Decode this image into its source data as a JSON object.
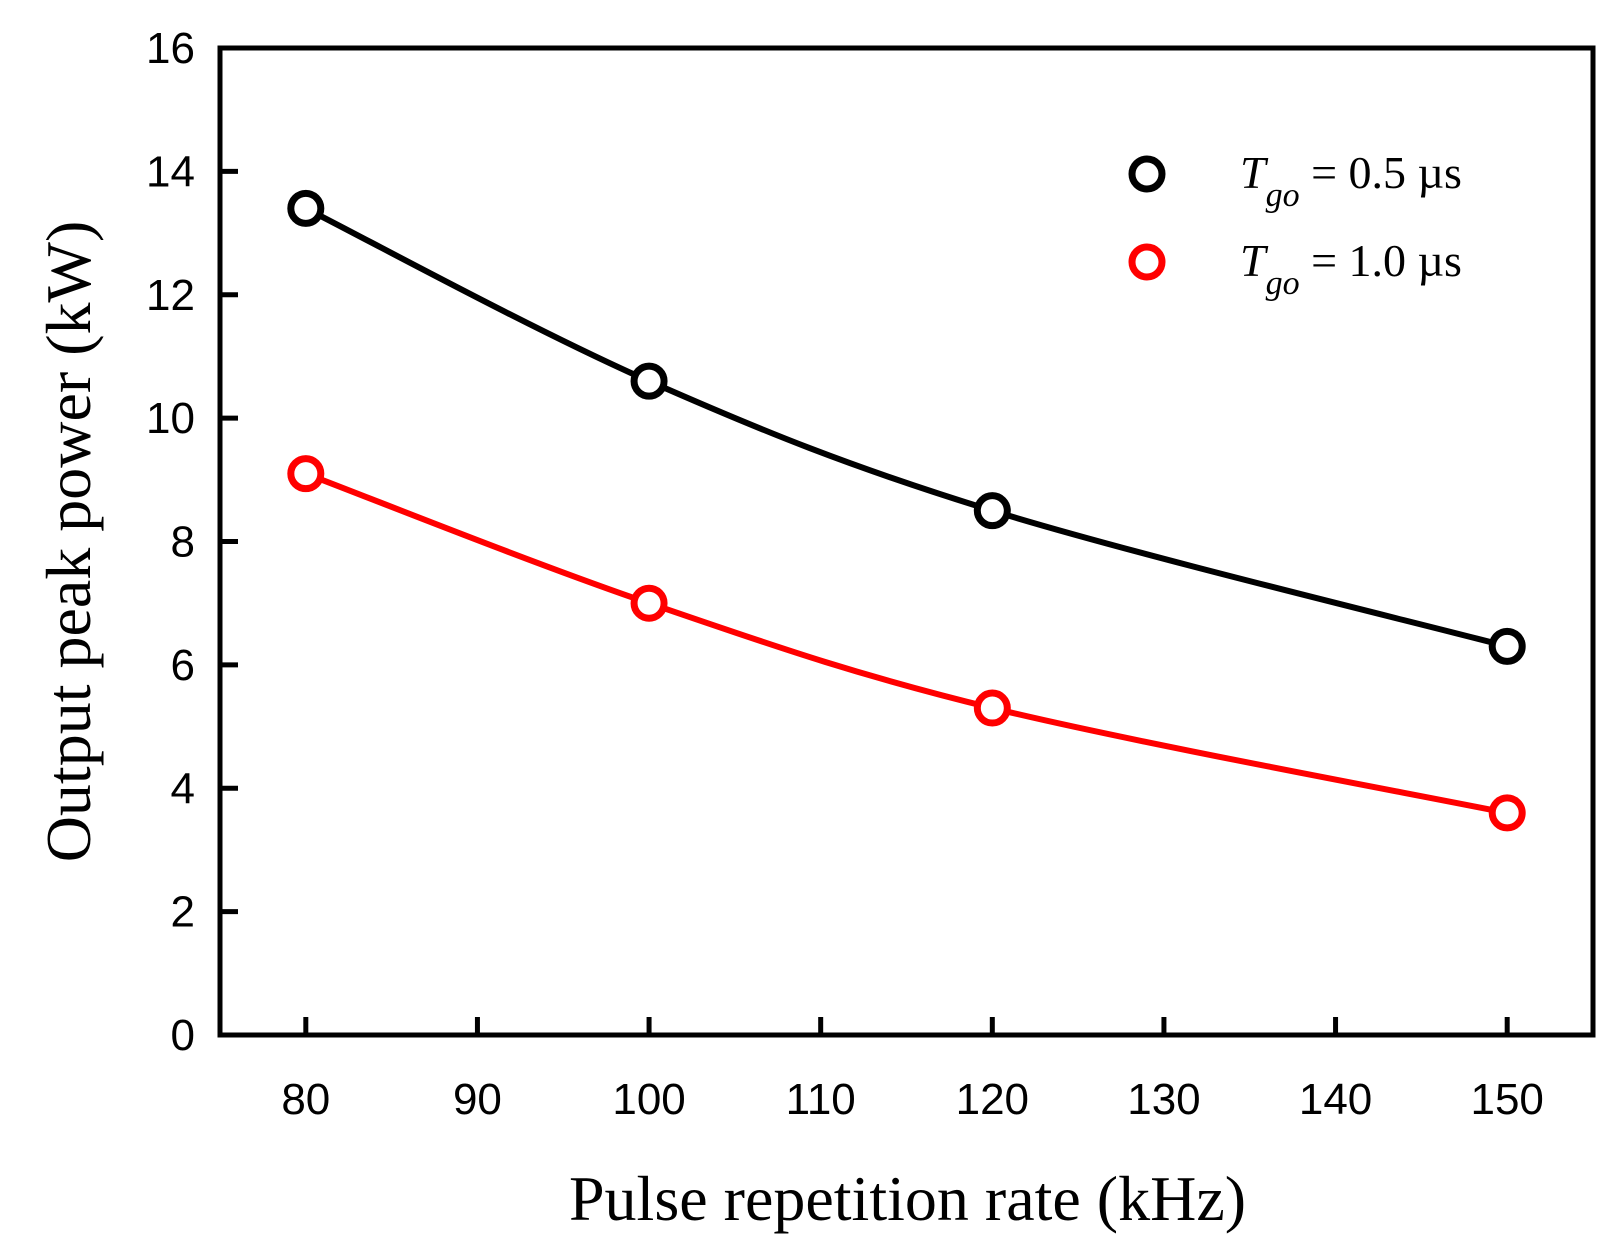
{
  "chart_data": {
    "type": "line",
    "xlabel": "Pulse repetition rate (kHz)",
    "ylabel": "Output peak power (kW)",
    "xlim": [
      75,
      155
    ],
    "ylim": [
      0,
      16
    ],
    "x_ticks": [
      80,
      90,
      100,
      110,
      120,
      130,
      140,
      150
    ],
    "y_ticks": [
      0,
      2,
      4,
      6,
      8,
      10,
      12,
      14,
      16
    ],
    "grid": false,
    "legend_position": "top-right",
    "series": [
      {
        "name_main": "T",
        "name_sub": "go",
        "name_rest": " = 0.5 µs",
        "color": "#000000",
        "marker": "open-circle",
        "x": [
          80,
          100,
          120,
          150
        ],
        "y": [
          13.4,
          10.6,
          8.5,
          6.3
        ]
      },
      {
        "name_main": "T",
        "name_sub": "go",
        "name_rest": " = 1.0 µs",
        "color": "#ff0000",
        "marker": "open-circle",
        "x": [
          80,
          100,
          120,
          150
        ],
        "y": [
          9.1,
          7.0,
          5.3,
          3.6
        ]
      }
    ]
  }
}
